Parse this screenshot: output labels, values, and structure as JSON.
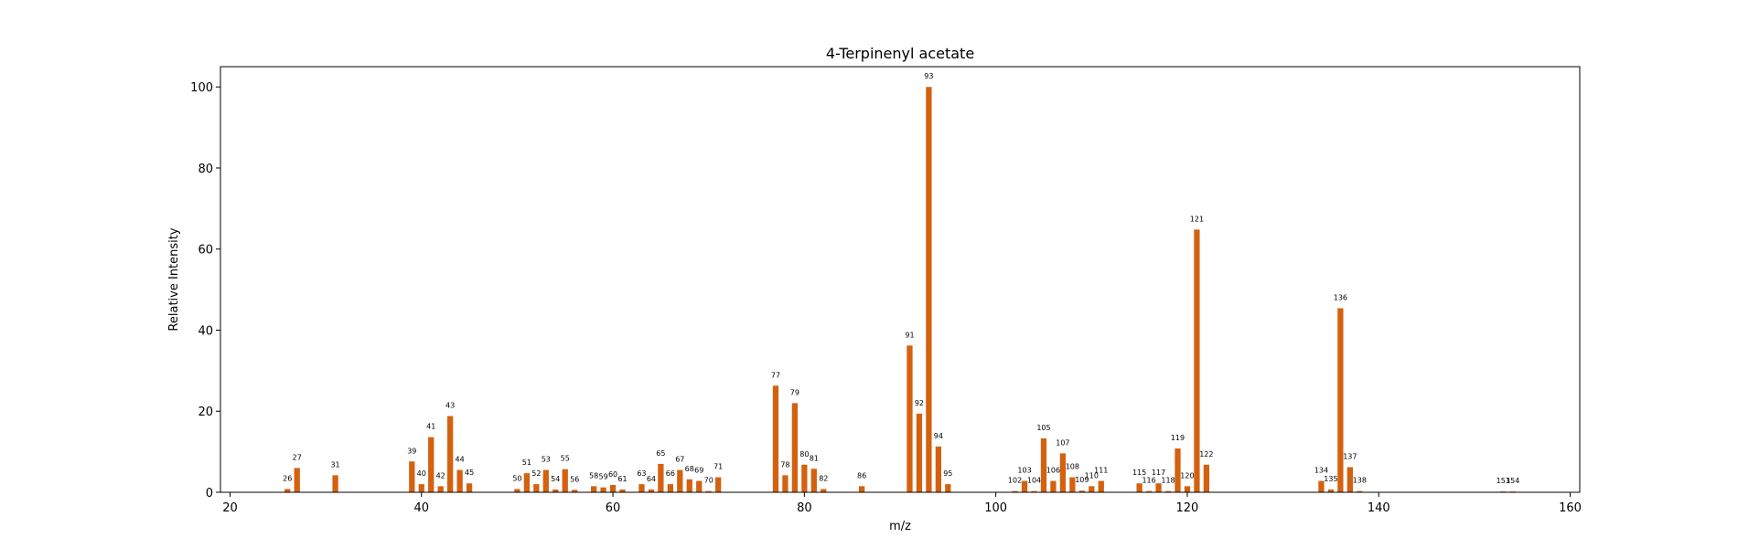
{
  "chart_data": {
    "type": "bar",
    "title": "4-Terpinenyl acetate",
    "xlabel": "m/z",
    "ylabel": "Relative Intensity",
    "xlim": [
      19,
      161
    ],
    "ylim": [
      0,
      105
    ],
    "xticks": [
      20,
      40,
      60,
      80,
      100,
      120,
      140,
      160
    ],
    "yticks": [
      0,
      20,
      40,
      60,
      80,
      100
    ],
    "bar_color": "#d4610f",
    "grid": false,
    "legend": "none",
    "points": [
      {
        "x": 26,
        "y": 0.8
      },
      {
        "x": 27,
        "y": 6
      },
      {
        "x": 31,
        "y": 4.2
      },
      {
        "x": 39,
        "y": 7.6
      },
      {
        "x": 40,
        "y": 2
      },
      {
        "x": 41,
        "y": 13.6
      },
      {
        "x": 42,
        "y": 1.5
      },
      {
        "x": 43,
        "y": 18.8
      },
      {
        "x": 44,
        "y": 5.5
      },
      {
        "x": 45,
        "y": 2.2
      },
      {
        "x": 50,
        "y": 0.8
      },
      {
        "x": 51,
        "y": 4.7
      },
      {
        "x": 52,
        "y": 2
      },
      {
        "x": 53,
        "y": 5.5
      },
      {
        "x": 54,
        "y": 0.7
      },
      {
        "x": 55,
        "y": 5.7
      },
      {
        "x": 56,
        "y": 0.6
      },
      {
        "x": 58,
        "y": 1.5
      },
      {
        "x": 59,
        "y": 1.2
      },
      {
        "x": 60,
        "y": 1.8
      },
      {
        "x": 61,
        "y": 0.7
      },
      {
        "x": 63,
        "y": 2
      },
      {
        "x": 64,
        "y": 0.7
      },
      {
        "x": 65,
        "y": 7
      },
      {
        "x": 66,
        "y": 2
      },
      {
        "x": 67,
        "y": 5.5
      },
      {
        "x": 68,
        "y": 3.2
      },
      {
        "x": 69,
        "y": 2.8
      },
      {
        "x": 70,
        "y": 0.3
      },
      {
        "x": 71,
        "y": 3.7
      },
      {
        "x": 77,
        "y": 26.3
      },
      {
        "x": 78,
        "y": 4.2
      },
      {
        "x": 79,
        "y": 22
      },
      {
        "x": 80,
        "y": 6.8
      },
      {
        "x": 81,
        "y": 5.8
      },
      {
        "x": 82,
        "y": 0.8
      },
      {
        "x": 86,
        "y": 1.5
      },
      {
        "x": 91,
        "y": 36.2
      },
      {
        "x": 92,
        "y": 19.4
      },
      {
        "x": 93,
        "y": 100
      },
      {
        "x": 94,
        "y": 11.3
      },
      {
        "x": 95,
        "y": 2
      },
      {
        "x": 102,
        "y": 0.3
      },
      {
        "x": 103,
        "y": 2.8
      },
      {
        "x": 104,
        "y": 0.3
      },
      {
        "x": 105,
        "y": 13.3
      },
      {
        "x": 106,
        "y": 2.8
      },
      {
        "x": 107,
        "y": 9.6
      },
      {
        "x": 108,
        "y": 3.7
      },
      {
        "x": 109,
        "y": 0.4
      },
      {
        "x": 110,
        "y": 1.5
      },
      {
        "x": 111,
        "y": 2.8
      },
      {
        "x": 115,
        "y": 2.2
      },
      {
        "x": 116,
        "y": 0.3
      },
      {
        "x": 117,
        "y": 2.2
      },
      {
        "x": 118,
        "y": 0.3
      },
      {
        "x": 119,
        "y": 10.8
      },
      {
        "x": 120,
        "y": 1.5
      },
      {
        "x": 121,
        "y": 64.8
      },
      {
        "x": 122,
        "y": 6.8
      },
      {
        "x": 134,
        "y": 2.8
      },
      {
        "x": 135,
        "y": 0.7
      },
      {
        "x": 136,
        "y": 45.4
      },
      {
        "x": 137,
        "y": 6.2
      },
      {
        "x": 138,
        "y": 0.3
      },
      {
        "x": 153,
        "y": 0.2
      },
      {
        "x": 154,
        "y": 0.2
      }
    ]
  }
}
